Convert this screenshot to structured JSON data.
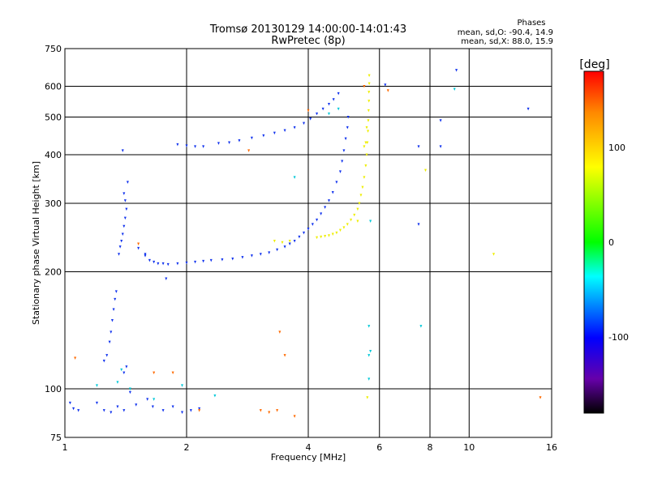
{
  "chart_data": {
    "type": "scatter",
    "title": "Tromsø 20130129 14:00:00-14:01:43",
    "subtitle": "RwPretec (8p)",
    "xlabel": "Frequency [MHz]",
    "ylabel": "Stationary phase Virtual Height [km]",
    "x_scale": "log",
    "y_scale": "log",
    "xlim": [
      1,
      16
    ],
    "ylim": [
      75,
      750
    ],
    "x_ticks": [
      1,
      2,
      4,
      6,
      8,
      10,
      16
    ],
    "y_ticks": [
      75,
      100,
      200,
      300,
      400,
      500,
      600,
      750
    ],
    "x_gridlines": [
      2,
      4,
      6,
      8,
      10
    ],
    "y_gridlines": [
      100,
      200,
      300,
      400,
      500,
      600
    ],
    "phase_stats": {
      "heading": "Phases",
      "o_mode": "mean, sd,O: -90.4, 14.9",
      "x_mode": "mean, sd,X:  88.0, 15.9"
    },
    "colorbar": {
      "label": "[deg]",
      "range": [
        -180,
        180
      ],
      "ticks": [
        100,
        0,
        -100
      ],
      "colors": [
        "#ff0000",
        "#ff8800",
        "#ffff00",
        "#00ff00",
        "#00ffff",
        "#0000ff",
        "#6600aa",
        "#000000"
      ]
    },
    "series": [
      {
        "name": "O-mode echoes (blue)",
        "phase": -90,
        "color": "#1133ee",
        "points": [
          [
            1.03,
            92
          ],
          [
            1.05,
            89
          ],
          [
            1.08,
            88
          ],
          [
            1.2,
            92
          ],
          [
            1.25,
            88
          ],
          [
            1.3,
            87
          ],
          [
            1.35,
            90
          ],
          [
            1.4,
            88
          ],
          [
            1.45,
            98
          ],
          [
            1.5,
            91
          ],
          [
            1.6,
            94
          ],
          [
            1.65,
            90
          ],
          [
            1.75,
            88
          ],
          [
            1.85,
            90
          ],
          [
            1.95,
            87
          ],
          [
            2.05,
            88
          ],
          [
            2.15,
            89
          ],
          [
            1.25,
            118
          ],
          [
            1.27,
            122
          ],
          [
            1.29,
            132
          ],
          [
            1.3,
            140
          ],
          [
            1.31,
            150
          ],
          [
            1.32,
            160
          ],
          [
            1.33,
            170
          ],
          [
            1.34,
            178
          ],
          [
            1.4,
            110
          ],
          [
            1.42,
            114
          ],
          [
            1.36,
            222
          ],
          [
            1.37,
            232
          ],
          [
            1.38,
            240
          ],
          [
            1.39,
            250
          ],
          [
            1.4,
            262
          ],
          [
            1.41,
            275
          ],
          [
            1.42,
            290
          ],
          [
            1.41,
            305
          ],
          [
            1.4,
            318
          ],
          [
            1.39,
            410
          ],
          [
            1.43,
            340
          ],
          [
            1.52,
            230
          ],
          [
            1.58,
            220
          ],
          [
            1.62,
            214
          ],
          [
            1.66,
            212
          ],
          [
            1.7,
            210
          ],
          [
            1.75,
            210
          ],
          [
            1.8,
            209
          ],
          [
            1.9,
            210
          ],
          [
            2.0,
            211
          ],
          [
            2.1,
            212
          ],
          [
            2.2,
            213
          ],
          [
            2.3,
            214
          ],
          [
            2.45,
            215
          ],
          [
            2.6,
            216
          ],
          [
            2.75,
            218
          ],
          [
            2.9,
            220
          ],
          [
            3.05,
            222
          ],
          [
            3.2,
            224
          ],
          [
            3.35,
            228
          ],
          [
            3.5,
            232
          ],
          [
            3.6,
            236
          ],
          [
            3.7,
            240
          ],
          [
            3.8,
            246
          ],
          [
            3.9,
            252
          ],
          [
            4.0,
            258
          ],
          [
            4.1,
            265
          ],
          [
            4.2,
            272
          ],
          [
            4.3,
            282
          ],
          [
            4.4,
            293
          ],
          [
            4.5,
            305
          ],
          [
            4.6,
            320
          ],
          [
            4.7,
            340
          ],
          [
            4.8,
            362
          ],
          [
            4.85,
            385
          ],
          [
            4.9,
            410
          ],
          [
            4.95,
            440
          ],
          [
            5.0,
            470
          ],
          [
            5.02,
            500
          ],
          [
            1.9,
            425
          ],
          [
            2.0,
            422
          ],
          [
            2.1,
            420
          ],
          [
            2.2,
            420
          ],
          [
            2.4,
            428
          ],
          [
            2.55,
            430
          ],
          [
            2.7,
            435
          ],
          [
            2.9,
            442
          ],
          [
            3.1,
            448
          ],
          [
            3.3,
            455
          ],
          [
            3.5,
            462
          ],
          [
            3.7,
            470
          ],
          [
            3.9,
            482
          ],
          [
            4.05,
            495
          ],
          [
            4.2,
            510
          ],
          [
            4.35,
            525
          ],
          [
            4.5,
            540
          ],
          [
            4.62,
            555
          ],
          [
            4.75,
            575
          ],
          [
            6.2,
            605
          ],
          [
            7.5,
            420
          ],
          [
            7.5,
            265
          ],
          [
            8.5,
            420
          ],
          [
            8.5,
            490
          ],
          [
            9.3,
            660
          ],
          [
            14.0,
            525
          ],
          [
            1.78,
            192
          ],
          [
            1.58,
            222
          ]
        ]
      },
      {
        "name": "X-mode echoes (yellow)",
        "phase": 88,
        "color": "#eeee00",
        "points": [
          [
            4.2,
            245
          ],
          [
            4.3,
            246
          ],
          [
            4.4,
            247
          ],
          [
            4.5,
            248
          ],
          [
            4.6,
            250
          ],
          [
            4.7,
            252
          ],
          [
            4.8,
            256
          ],
          [
            4.9,
            260
          ],
          [
            5.0,
            265
          ],
          [
            5.1,
            272
          ],
          [
            5.2,
            280
          ],
          [
            5.3,
            290
          ],
          [
            5.35,
            300
          ],
          [
            5.4,
            315
          ],
          [
            5.45,
            330
          ],
          [
            5.5,
            350
          ],
          [
            5.55,
            375
          ],
          [
            5.58,
            400
          ],
          [
            5.6,
            430
          ],
          [
            5.62,
            460
          ],
          [
            5.63,
            490
          ],
          [
            5.64,
            520
          ],
          [
            5.65,
            550
          ],
          [
            5.65,
            580
          ],
          [
            5.66,
            610
          ],
          [
            5.66,
            640
          ],
          [
            5.55,
            430
          ],
          [
            5.5,
            420
          ],
          [
            5.58,
            470
          ],
          [
            3.3,
            240
          ],
          [
            3.45,
            238
          ],
          [
            3.6,
            240
          ],
          [
            5.3,
            270
          ],
          [
            5.6,
            95
          ],
          [
            7.8,
            365
          ],
          [
            11.5,
            222
          ]
        ]
      },
      {
        "name": "Scattered (cyan/green)",
        "phase": -20,
        "color": "#00c8d8",
        "points": [
          [
            1.2,
            102
          ],
          [
            1.35,
            104
          ],
          [
            1.38,
            112
          ],
          [
            1.66,
            94
          ],
          [
            1.95,
            102
          ],
          [
            5.65,
            122
          ],
          [
            5.7,
            125
          ],
          [
            5.65,
            145
          ],
          [
            5.65,
            106
          ],
          [
            3.7,
            350
          ],
          [
            4.5,
            510
          ],
          [
            4.75,
            525
          ],
          [
            9.2,
            590
          ],
          [
            1.45,
            100
          ],
          [
            2.35,
            96
          ],
          [
            7.6,
            145
          ],
          [
            5.7,
            270
          ]
        ]
      },
      {
        "name": "Scattered (orange/red)",
        "phase": 150,
        "color": "#ff6a00",
        "points": [
          [
            1.06,
            120
          ],
          [
            1.52,
            236
          ],
          [
            1.66,
            110
          ],
          [
            1.85,
            110
          ],
          [
            2.15,
            88
          ],
          [
            3.05,
            88
          ],
          [
            3.2,
            87
          ],
          [
            3.35,
            88
          ],
          [
            3.4,
            140
          ],
          [
            2.85,
            410
          ],
          [
            4.0,
            520
          ],
          [
            5.5,
            600
          ],
          [
            6.3,
            585
          ],
          [
            15.0,
            95
          ],
          [
            3.5,
            122
          ],
          [
            3.7,
            85
          ]
        ]
      }
    ]
  }
}
